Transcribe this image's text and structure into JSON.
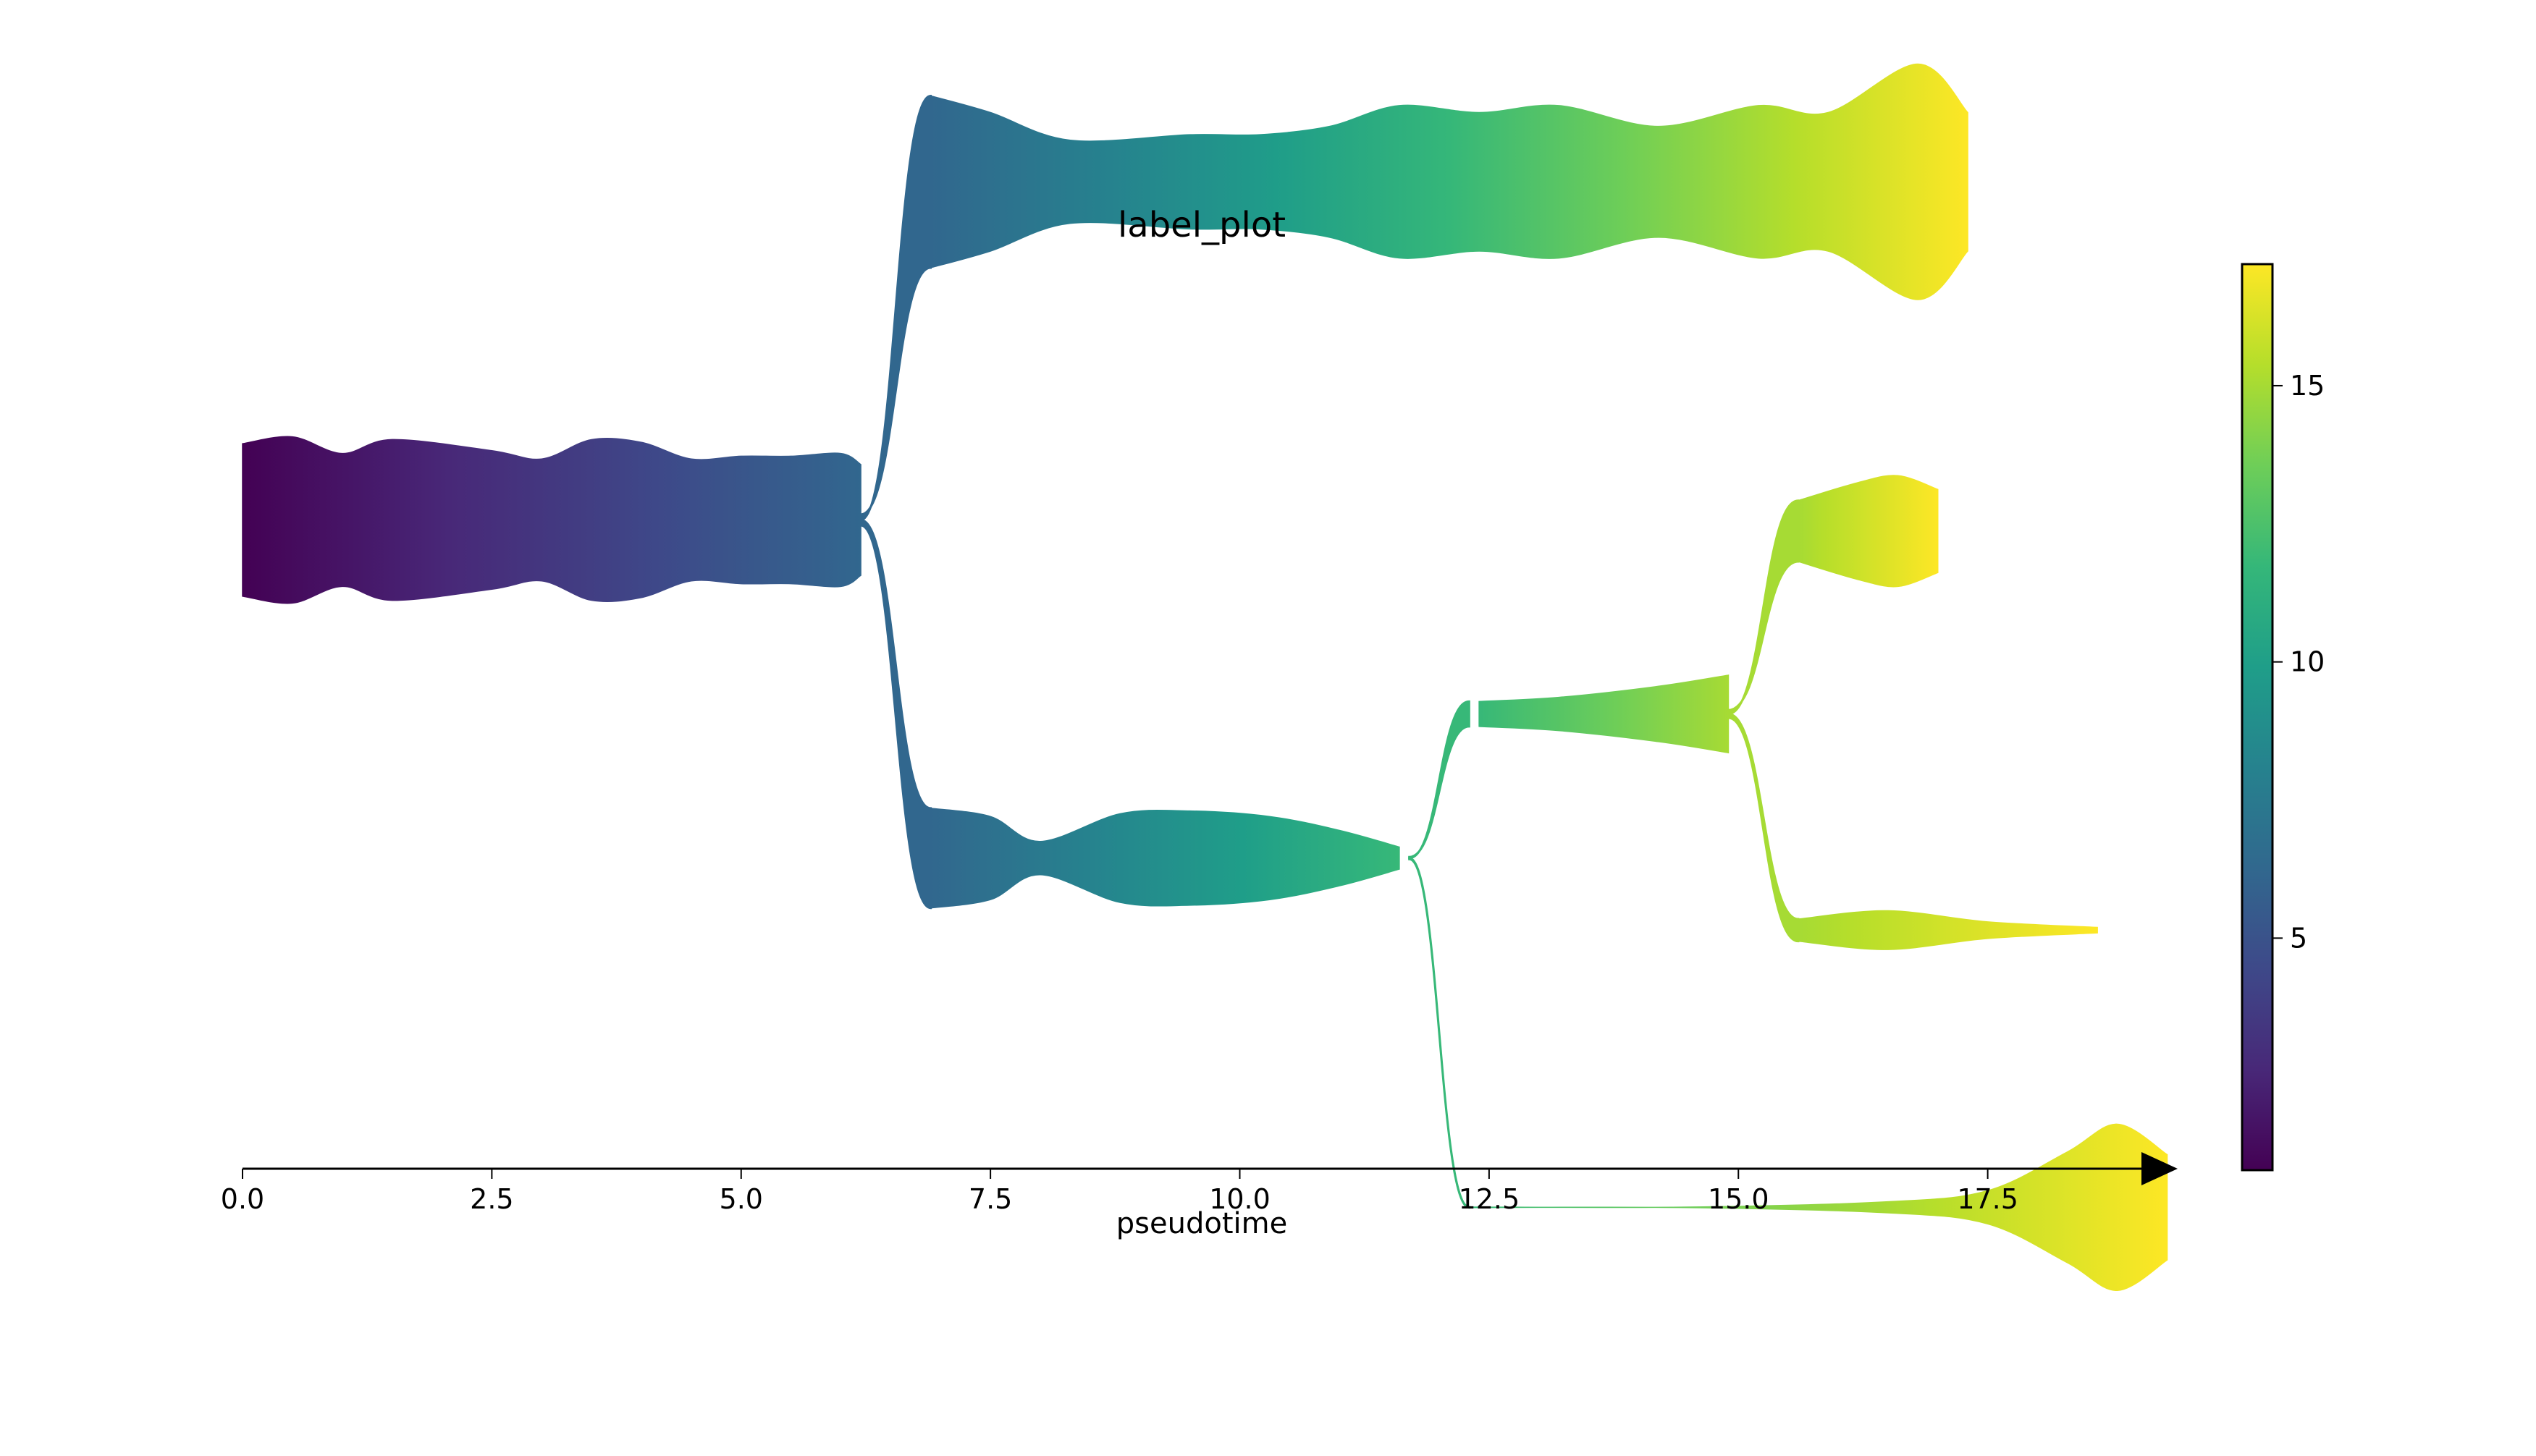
{
  "chart_data": {
    "type": "area",
    "title": "label_plot",
    "xlabel": "pseudotime",
    "ylabel": "",
    "x_ticks": [
      "0.0",
      "2.5",
      "5.0",
      "7.5",
      "10.0",
      "12.5",
      "15.0",
      "17.5"
    ],
    "xlim": [
      0,
      19.5
    ],
    "colorbar": {
      "colormap": "viridis",
      "range": [
        0.8,
        17.2
      ],
      "ticks": [
        "5",
        "10",
        "15"
      ],
      "colors": [
        "#440154",
        "#482878",
        "#3e4989",
        "#31688e",
        "#26828e",
        "#1f9e89",
        "#35b779",
        "#6ece58",
        "#b5de2b",
        "#fde725"
      ]
    },
    "segments": [
      {
        "name": "trunk",
        "color_range": [
          0.8,
          6.2
        ],
        "center_y": 0.5,
        "points": [
          [
            0.0,
            0.55
          ],
          [
            0.5,
            0.6
          ],
          [
            1.0,
            0.48
          ],
          [
            1.5,
            0.58
          ],
          [
            2.5,
            0.5
          ],
          [
            3.0,
            0.44
          ],
          [
            3.5,
            0.58
          ],
          [
            4.0,
            0.56
          ],
          [
            4.5,
            0.44
          ],
          [
            5.0,
            0.46
          ],
          [
            5.5,
            0.46
          ],
          [
            6.0,
            0.48
          ],
          [
            6.2,
            0.4
          ]
        ]
      },
      {
        "name": "upper-branch",
        "color_range": [
          6.2,
          17.2
        ],
        "center_y": 1.72,
        "points": [
          [
            6.9,
            0.62
          ],
          [
            7.5,
            0.5
          ],
          [
            8.3,
            0.3
          ],
          [
            9.5,
            0.34
          ],
          [
            10.2,
            0.34
          ],
          [
            10.9,
            0.4
          ],
          [
            11.6,
            0.55
          ],
          [
            12.4,
            0.5
          ],
          [
            13.2,
            0.55
          ],
          [
            14.2,
            0.4
          ],
          [
            15.2,
            0.55
          ],
          [
            15.9,
            0.5
          ],
          [
            16.8,
            0.85
          ],
          [
            17.3,
            0.5
          ]
        ]
      },
      {
        "name": "lower-branch",
        "color_range": [
          6.2,
          11.8
        ],
        "center_y": -0.72,
        "points": [
          [
            6.9,
            0.36
          ],
          [
            7.5,
            0.3
          ],
          [
            8.0,
            0.12
          ],
          [
            8.8,
            0.32
          ],
          [
            9.5,
            0.34
          ],
          [
            10.3,
            0.3
          ],
          [
            11.0,
            0.2
          ],
          [
            11.6,
            0.08
          ]
        ]
      },
      {
        "name": "mid-branch",
        "color_range": [
          11.8,
          15.0
        ],
        "center_y": -0.2,
        "points": [
          [
            12.4,
            0.09
          ],
          [
            13.2,
            0.12
          ],
          [
            14.2,
            0.2
          ],
          [
            14.9,
            0.28
          ]
        ]
      },
      {
        "name": "mid-upper-leaf",
        "color_range": [
          15.0,
          17.2
        ],
        "center_y": 0.46,
        "points": [
          [
            15.6,
            0.22
          ],
          [
            16.2,
            0.35
          ],
          [
            16.6,
            0.4
          ],
          [
            17.0,
            0.3
          ]
        ]
      },
      {
        "name": "mid-lower-leaf",
        "color_range": [
          15.0,
          17.2
        ],
        "center_y": -0.98,
        "points": [
          [
            15.6,
            0.08
          ],
          [
            16.5,
            0.14
          ],
          [
            17.5,
            0.06
          ],
          [
            18.6,
            0.02
          ]
        ]
      },
      {
        "name": "bottom-branch",
        "color_range": [
          11.8,
          17.2
        ],
        "center_y": -1.98,
        "points": [
          [
            12.3,
            0.002
          ],
          [
            14.5,
            0.002
          ],
          [
            16.5,
            0.04
          ],
          [
            17.5,
            0.12
          ],
          [
            18.3,
            0.4
          ],
          [
            18.8,
            0.6
          ],
          [
            19.3,
            0.38
          ]
        ]
      }
    ],
    "connections": [
      {
        "from": "trunk",
        "to": "upper-branch",
        "x_start": 6.2,
        "x_end": 6.9
      },
      {
        "from": "trunk",
        "to": "lower-branch",
        "x_start": 6.2,
        "x_end": 6.9
      },
      {
        "from": "lower-branch",
        "to": "mid-branch",
        "x_start": 11.7,
        "x_end": 12.3
      },
      {
        "from": "lower-branch",
        "to": "bottom-branch",
        "x_start": 11.7,
        "x_end": 12.3
      },
      {
        "from": "mid-branch",
        "to": "mid-upper-leaf",
        "x_start": 14.9,
        "x_end": 15.6
      },
      {
        "from": "mid-branch",
        "to": "mid-lower-leaf",
        "x_start": 14.9,
        "x_end": 15.6
      }
    ]
  }
}
